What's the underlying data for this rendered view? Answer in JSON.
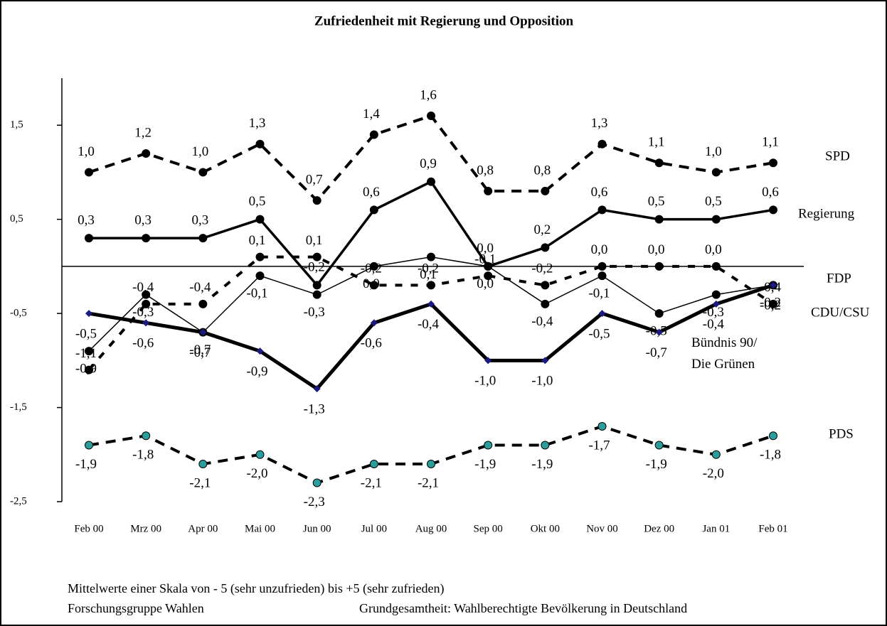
{
  "chart_data": {
    "type": "line",
    "title": "Zufriedenheit mit Regierung und Opposition",
    "categories": [
      "Feb 00",
      "Mrz 00",
      "Apr 00",
      "Mai 00",
      "Jun 00",
      "Jul 00",
      "Aug 00",
      "Sep 00",
      "Okt 00",
      "Nov 00",
      "Dez 00",
      "Jan 01",
      "Feb 01"
    ],
    "ylim": [
      -2.5,
      2.0
    ],
    "yticks": [
      {
        "value": -2.5,
        "label": "-2,5"
      },
      {
        "value": -1.5,
        "label": "-1,5"
      },
      {
        "value": -0.5,
        "label": "-0,5"
      },
      {
        "value": 0.5,
        "label": "0,5"
      },
      {
        "value": 1.5,
        "label": "1,5"
      }
    ],
    "series": [
      {
        "name": "SPD",
        "color": "#000000",
        "marker_color": "#000000",
        "marker": "circle",
        "line_style": "dashed",
        "values": [
          1.0,
          1.2,
          1.0,
          1.3,
          0.7,
          1.4,
          1.6,
          0.8,
          0.8,
          1.3,
          1.1,
          1.0,
          1.1
        ],
        "value_labels": [
          "1,0",
          "1,2",
          "1,0",
          "1,3",
          "0,7",
          "1,4",
          "1,6",
          "0,8",
          "0,8",
          "1,3",
          "1,1",
          "1,0",
          "1,1"
        ]
      },
      {
        "name": "Regierung",
        "color": "#000000",
        "marker_color": "#000000",
        "marker": "circle",
        "line_style": "solid",
        "values": [
          0.3,
          0.3,
          0.3,
          0.5,
          -0.2,
          0.6,
          0.9,
          0.0,
          0.2,
          0.6,
          0.5,
          0.5,
          0.6
        ],
        "value_labels": [
          "0,3",
          "0,3",
          "0,3",
          "0,5",
          "-0,2",
          "0,6",
          "0,9",
          "0,0",
          "0,2",
          "0,6",
          "0,5",
          "0,5",
          "0,6"
        ]
      },
      {
        "name": "FDP",
        "color": "#000000",
        "marker_color": "#000000",
        "marker": "circle",
        "line_style": "dotted",
        "values": [
          -1.1,
          -0.4,
          -0.4,
          0.1,
          0.1,
          -0.2,
          -0.2,
          -0.1,
          -0.2,
          0.0,
          0.0,
          0.0,
          -0.4
        ],
        "value_labels": [
          "-1,1",
          "-0,4",
          "-0,4",
          "0,1",
          "0,1",
          "-0,2",
          "-0,2",
          "-0,1",
          "-0,2",
          "0,0",
          "0,0",
          "0,0",
          "-0,4"
        ]
      },
      {
        "name": "CDU/CSU",
        "color": "#000000",
        "marker_color": "#000000",
        "marker": "circle",
        "line_style": "thin",
        "values": [
          -0.9,
          -0.3,
          -0.7,
          -0.1,
          -0.3,
          0.0,
          0.1,
          0.0,
          -0.4,
          -0.1,
          -0.5,
          -0.3,
          -0.2
        ],
        "value_labels": [
          "-0,9",
          "-0,3",
          "-0,7",
          "-0,1",
          "-0,3",
          "0,0",
          "0,1",
          "0,0",
          "-0,4",
          "-0,1",
          "-0,5",
          "-0,3",
          "-0,2"
        ]
      },
      {
        "name": "Bündnis 90/ Die Grünen",
        "color": "#000000",
        "marker_color": "#1a1a80",
        "marker": "diamond",
        "line_style": "thick",
        "values": [
          -0.5,
          -0.6,
          -0.7,
          -0.9,
          -1.3,
          -0.6,
          -0.4,
          -1.0,
          -1.0,
          -0.5,
          -0.7,
          -0.4,
          -0.2
        ],
        "value_labels": [
          "-0,5",
          "-0,6",
          "-0,7",
          "-0,9",
          "-1,3",
          "-0,6",
          "-0,4",
          "-1,0",
          "-1,0",
          "-0,5",
          "-0,7",
          "-0,4",
          "-0,2"
        ]
      },
      {
        "name": "PDS",
        "color": "#000000",
        "marker_color": "#2a9d9d",
        "marker": "circle",
        "line_style": "dashed",
        "values": [
          -1.9,
          -1.8,
          -2.1,
          -2.0,
          -2.3,
          -2.1,
          -2.1,
          -1.9,
          -1.9,
          -1.7,
          -1.9,
          -2.0,
          -1.8
        ],
        "value_labels": [
          "-1,9",
          "-1,8",
          "-2,1",
          "-2,0",
          "-2,3",
          "-2,1",
          "-2,1",
          "-1,9",
          "-1,9",
          "-1,7",
          "-1,9",
          "-2,0",
          "-1,8"
        ]
      }
    ],
    "notes": [
      "Mittelwerte einer Skala von - 5 (sehr unzufrieden) bis +5 (sehr zufrieden)",
      "Forschungsgruppe Wahlen",
      "Grundgesamtheit: Wahlberechtigte Bevölkerung in Deutschland"
    ]
  }
}
